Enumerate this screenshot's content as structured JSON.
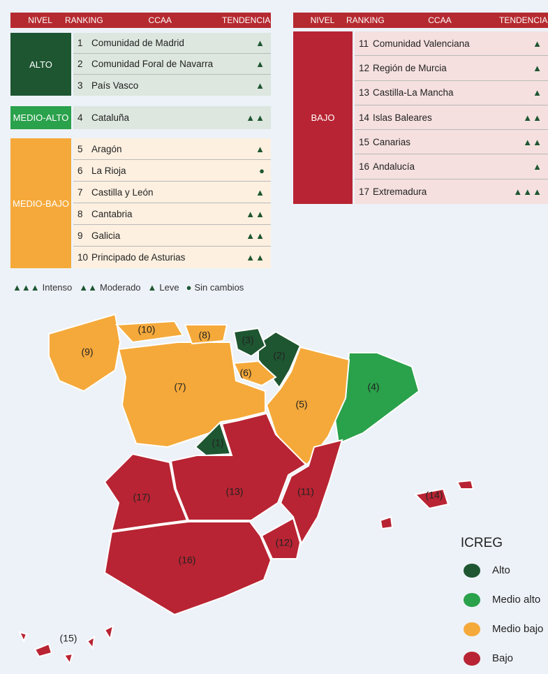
{
  "left_table": {
    "header": [
      "NIVEL",
      "RANKING",
      "CCAA",
      "TENDENCIA"
    ],
    "groups": [
      {
        "level": "ALTO",
        "rows": [
          [
            1,
            "Comunidad de Madrid",
            "▲"
          ],
          [
            2,
            "Comunidad Foral de Navarra",
            "▲"
          ],
          [
            3,
            "País Vasco",
            "▲"
          ]
        ]
      },
      {
        "level": "MEDIO-ALTO",
        "rows": [
          [
            4,
            "Cataluña",
            "▲▲"
          ]
        ]
      },
      {
        "level": "MEDIO-BAJO",
        "rows": [
          [
            5,
            "Aragón",
            "▲"
          ],
          [
            6,
            "La Rioja",
            "●"
          ],
          [
            7,
            "Castilla y León",
            "▲"
          ],
          [
            8,
            "Cantabria",
            "▲▲"
          ],
          [
            9,
            "Galicia",
            "▲▲"
          ],
          [
            10,
            "Principado de Asturias",
            "▲▲"
          ]
        ]
      }
    ]
  },
  "right_table": {
    "header": [
      "NIVEL",
      "RANKING",
      "CCAA",
      "TENDENCIA"
    ],
    "groups": [
      {
        "level": "BAJO",
        "rows": [
          [
            11,
            "Comunidad Valenciana",
            "▲"
          ],
          [
            12,
            "Región de Murcia",
            "▲"
          ],
          [
            13,
            "Castilla-La Mancha",
            "▲"
          ],
          [
            14,
            "Islas Baleares",
            "▲▲"
          ],
          [
            15,
            "Canarias",
            "▲▲"
          ],
          [
            16,
            "Andalucía",
            "▲"
          ],
          [
            17,
            "Extremadura",
            "▲▲▲"
          ]
        ]
      }
    ]
  },
  "trend_legend": [
    {
      "symbol": "▲▲▲",
      "label": "Intenso"
    },
    {
      "symbol": "▲▲",
      "label": "Moderado"
    },
    {
      "symbol": "▲",
      "label": "Leve"
    },
    {
      "symbol": "●",
      "label": "Sin cambios"
    }
  ],
  "map": {
    "regions": [
      "(1)",
      "(2)",
      "(3)",
      "(4)",
      "(5)",
      "(6)",
      "(7)",
      "(8)",
      "(9)",
      "(10)",
      "(11)",
      "(12)",
      "(13)",
      "(14)",
      "(15)",
      "(16)",
      "(17)"
    ],
    "legend": {
      "title": "ICREG",
      "items": [
        {
          "label": "Alto",
          "color": "#1e5631"
        },
        {
          "label": "Medio alto",
          "color": "#2aa14b"
        },
        {
          "label": "Medio bajo",
          "color": "#f5a93a"
        },
        {
          "label": "Bajo",
          "color": "#b82433"
        }
      ]
    }
  }
}
